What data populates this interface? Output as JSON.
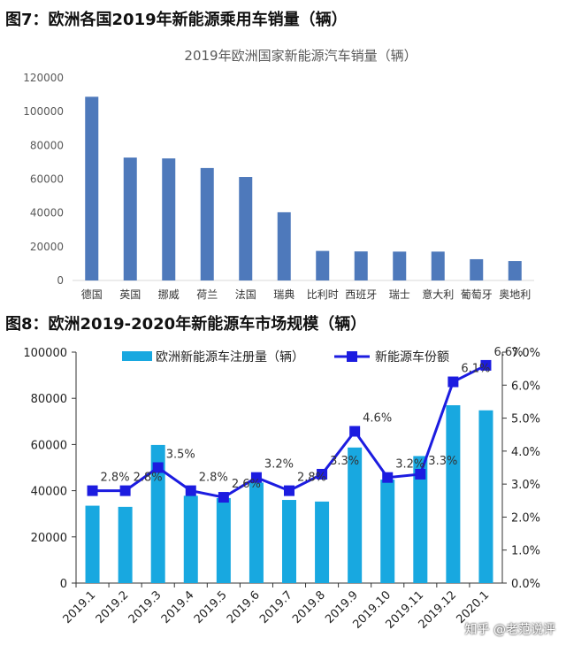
{
  "figures": {
    "fig7_title": "图7：欧洲各国2019年新能源乘用车销量（辆）",
    "fig8_title": "图8：欧洲2019-2020年新能源车市场规模（辆）"
  },
  "watermark": "知乎 @老范说评",
  "chart_data": [
    {
      "type": "bar",
      "title": "2019年欧洲国家新能源汽车销量（辆）",
      "categories": [
        "德国",
        "英国",
        "挪威",
        "荷兰",
        "法国",
        "瑞典",
        "比利时",
        "西班牙",
        "瑞士",
        "意大利",
        "葡萄牙",
        "奥地利"
      ],
      "values": [
        108800,
        72800,
        72300,
        66600,
        61300,
        40400,
        17500,
        17200,
        17100,
        17100,
        12600,
        11500
      ],
      "ylim": [
        0,
        120000
      ],
      "yticks": [
        "0",
        "20000",
        "40000",
        "60000",
        "80000",
        "100000",
        "120000"
      ],
      "grid": false,
      "color": "#4e79bb"
    },
    {
      "type": "bar+line",
      "categories": [
        "2019.1",
        "2019.2",
        "2019.3",
        "2019.4",
        "2019.5",
        "2019.6",
        "2019.7",
        "2019.8",
        "2019.9",
        "2019.10",
        "2019.11",
        "2019.12",
        "2020.1"
      ],
      "series": [
        {
          "name": "欧洲新能源车注册量（辆）",
          "type": "bar",
          "axis": "left",
          "color": "#18a8e0",
          "values": [
            33500,
            33000,
            59800,
            37800,
            36800,
            43500,
            36000,
            35300,
            58700,
            44800,
            55000,
            77000,
            74800
          ]
        },
        {
          "name": "新能源车份额",
          "type": "line",
          "axis": "right",
          "color": "#1c1ce0",
          "values": [
            2.8,
            2.8,
            3.5,
            2.8,
            2.6,
            3.2,
            2.8,
            3.3,
            4.6,
            3.2,
            3.3,
            6.1,
            6.6
          ],
          "labels": [
            "2.8%",
            "2.8%",
            "3.5%",
            "2.8%",
            "2.6%",
            "3.2%",
            "2.8%",
            "3.3%",
            "4.6%",
            "3.2%",
            "3.3%",
            "6.1%",
            "6.6%"
          ]
        }
      ],
      "ylim_left": [
        0,
        100000
      ],
      "yticks_left": [
        "0",
        "20000",
        "40000",
        "60000",
        "80000",
        "100000"
      ],
      "ylim_right": [
        0,
        7.0
      ],
      "yticks_right": [
        "0.0%",
        "1.0%",
        "2.0%",
        "3.0%",
        "4.0%",
        "5.0%",
        "6.0%",
        "7.0%"
      ],
      "legend": "top"
    }
  ]
}
